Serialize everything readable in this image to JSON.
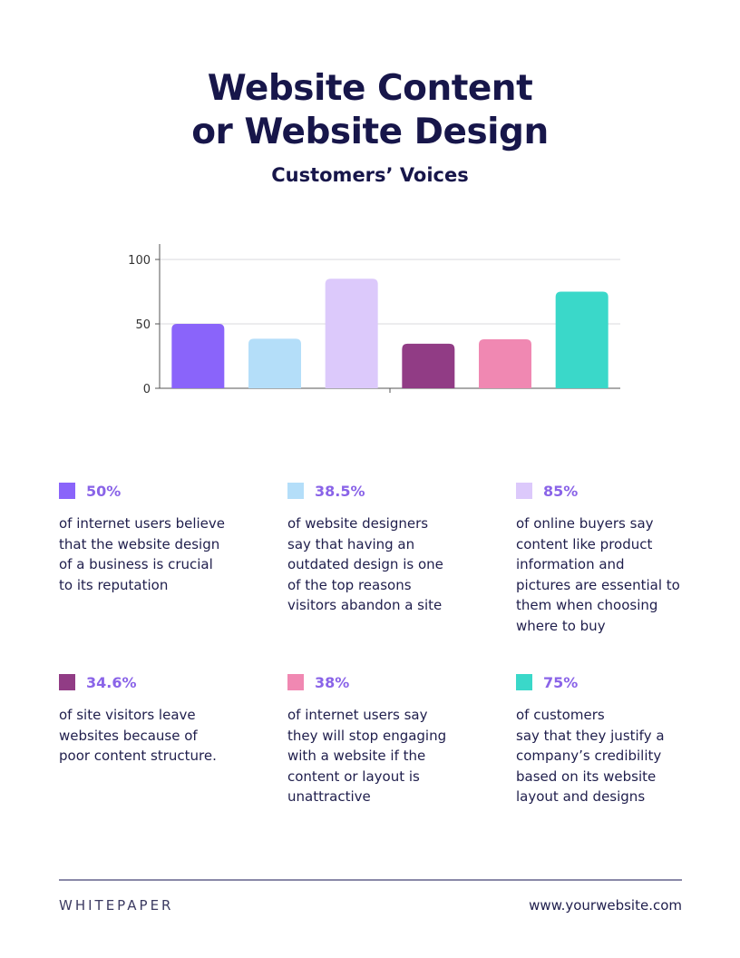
{
  "header": {
    "title_line1": "Website Content",
    "title_line2": "or Website Design",
    "subtitle": "Customers’ Voices"
  },
  "chart_data": {
    "type": "bar",
    "categories": [
      "",
      "",
      "",
      "",
      "",
      ""
    ],
    "values": [
      50,
      38.5,
      85,
      34.6,
      38,
      75
    ],
    "colors": [
      "#8a64fa",
      "#b4def9",
      "#dcc9fb",
      "#913c85",
      "#f088b2",
      "#3ad8c9"
    ],
    "ylim": [
      0,
      110
    ],
    "yticks": [
      "0",
      "50",
      "100"
    ],
    "grid": true
  },
  "stats": [
    {
      "percent": "50%",
      "color": "#8a64fa",
      "text": "of internet users believe\nthat the website design\nof a business is crucial\nto its reputation"
    },
    {
      "percent": "38.5%",
      "color": "#b4def9",
      "text": "of website designers\nsay that having an\noutdated design is one\nof the top reasons\nvisitors abandon a site"
    },
    {
      "percent": "85%",
      "color": "#dcc9fb",
      "text": "of online buyers say\ncontent like product\ninformation and\npictures are essential to\nthem when choosing\nwhere to buy"
    },
    {
      "percent": "34.6%",
      "color": "#913c85",
      "text": "of site visitors leave\nwebsites because of\npoor content structure."
    },
    {
      "percent": "38%",
      "color": "#f088b2",
      "text": "of internet users say\nthey will stop engaging\nwith a website if the\ncontent or layout is\nunattractive"
    },
    {
      "percent": "75%",
      "color": "#3ad8c9",
      "text": "of customers\nsay that they justify a\ncompany’s credibility\nbased on its website\nlayout and designs"
    }
  ],
  "footer": {
    "left": "WHITEPAPER",
    "right": "www.yourwebsite.com"
  }
}
